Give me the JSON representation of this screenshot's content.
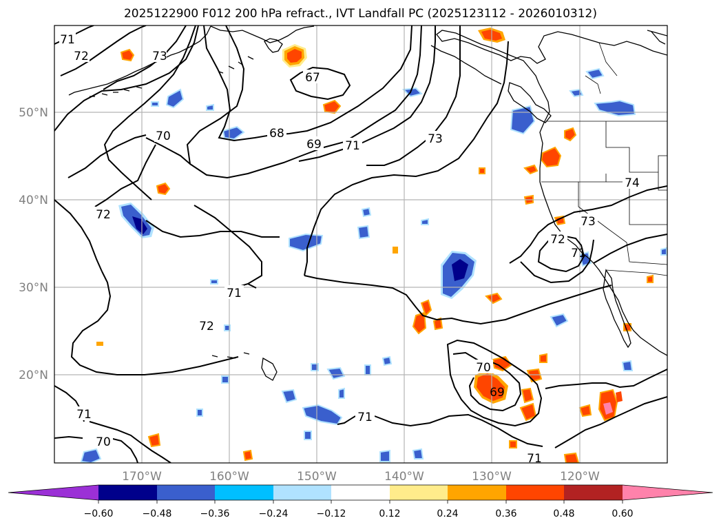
{
  "title": "2025122900 F012 200 hPa refract., IVT Landfall PC (2025123112 - 2026010312)",
  "map": {
    "lon_labels": [
      "170°W",
      "160°W",
      "150°W",
      "140°W",
      "130°W",
      "120°W"
    ],
    "lat_labels": [
      "50°N",
      "40°N",
      "30°N",
      "20°N"
    ],
    "contour_labels": [
      {
        "text": "71",
        "value": 71
      },
      {
        "text": "72",
        "value": 72
      },
      {
        "text": "73",
        "value": 73
      },
      {
        "text": "67",
        "value": 67
      },
      {
        "text": "70",
        "value": 70
      },
      {
        "text": "68",
        "value": 68
      },
      {
        "text": "69",
        "value": 69
      },
      {
        "text": "71",
        "value": 71
      },
      {
        "text": "73",
        "value": 73
      },
      {
        "text": "72",
        "value": 72
      },
      {
        "text": "71",
        "value": 71
      },
      {
        "text": "72",
        "value": 72
      },
      {
        "text": "71",
        "value": 71
      },
      {
        "text": "70",
        "value": 70
      },
      {
        "text": "69",
        "value": 69
      },
      {
        "text": "71",
        "value": 71
      },
      {
        "text": "71",
        "value": 71
      },
      {
        "text": "70",
        "value": 70
      },
      {
        "text": "71",
        "value": 71
      },
      {
        "text": "73",
        "value": 73
      },
      {
        "text": "72",
        "value": 72
      },
      {
        "text": "74",
        "value": 74
      }
    ]
  },
  "colorbar": {
    "tick_labels": [
      "−0.60",
      "−0.48",
      "−0.36",
      "−0.24",
      "−0.12",
      "0.12",
      "0.24",
      "0.36",
      "0.48",
      "0.60"
    ],
    "colors": [
      "#9b30d6",
      "#00008b",
      "#3a5fcd",
      "#00bfff",
      "#b0e2ff",
      "#ffffff",
      "#ffec8b",
      "#ffa500",
      "#ff4500",
      "#b22222",
      "#ff82ab"
    ]
  }
}
